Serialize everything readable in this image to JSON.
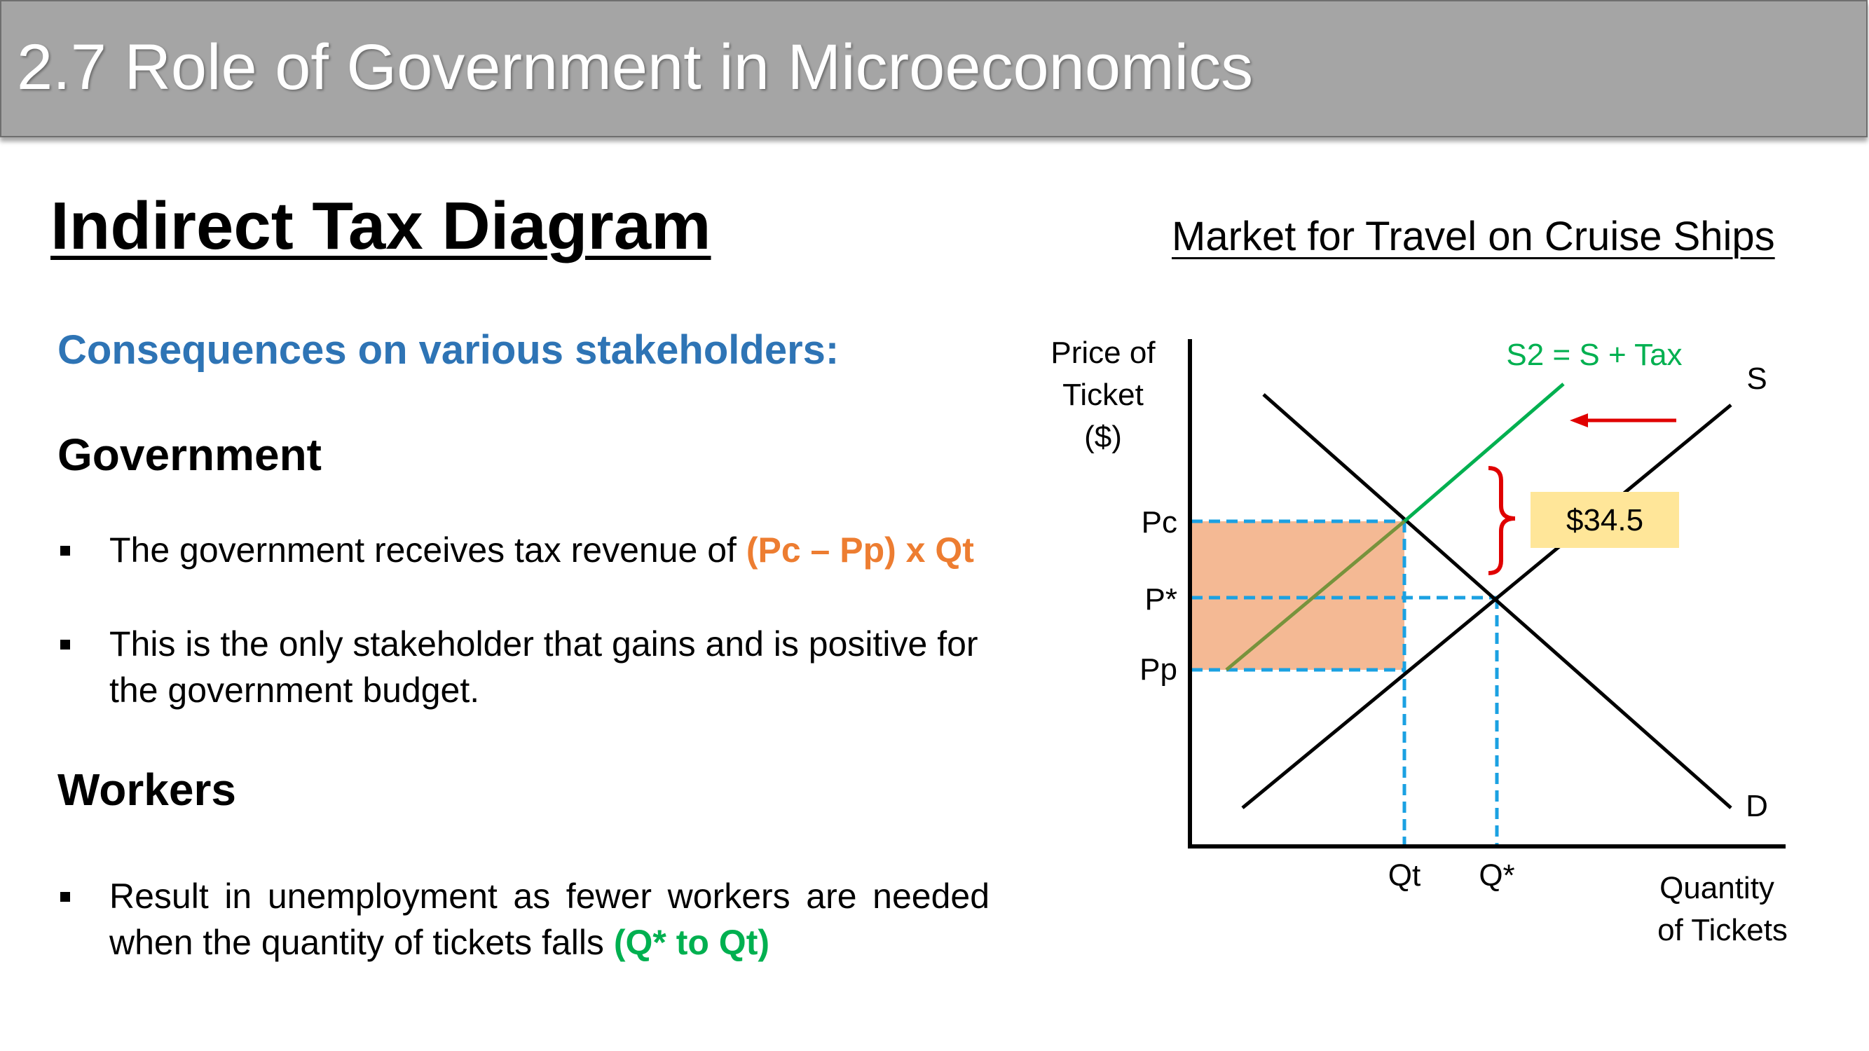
{
  "header": {
    "title": "2.7 Role of Government in Microeconomics"
  },
  "main": {
    "heading": "Indirect Tax Diagram",
    "subheading": "Consequences on various stakeholders:",
    "sections": [
      {
        "title": "Government",
        "bullets": [
          {
            "text": "The government receives tax revenue of ",
            "highlight": "(Pc – Pp) x Qt"
          },
          {
            "text": "This is the only stakeholder that gains and is positive for the government budget."
          }
        ]
      },
      {
        "title": "Workers",
        "bullets": [
          {
            "text": "Result in unemployment as fewer workers are needed when the quantity of tickets falls ",
            "highlight": "(Q* to Qt)"
          }
        ]
      }
    ]
  },
  "diagram": {
    "title": "Market for Travel on Cruise Ships",
    "y_axis_label": [
      "Price of",
      "Ticket",
      "($)"
    ],
    "x_axis_label": [
      "Quantity",
      "of Tickets"
    ],
    "price_labels": {
      "pc": "Pc",
      "pstar": "P*",
      "pp": "Pp"
    },
    "quantity_labels": {
      "qt": "Qt",
      "qstar": "Q*"
    },
    "curves": {
      "supply": "S",
      "demand": "D",
      "supply_tax": "S2 = S + Tax"
    },
    "tax_amount": "$34.5",
    "colors": {
      "supply_tax": "#00b050",
      "tax_revenue_area": "#f4b994",
      "dashed_lines": "#1ba1e2",
      "brace": "#e00000",
      "arrow": "#e00000",
      "tax_label_bg": "#ffe699",
      "blend_line": "#77933c"
    }
  }
}
